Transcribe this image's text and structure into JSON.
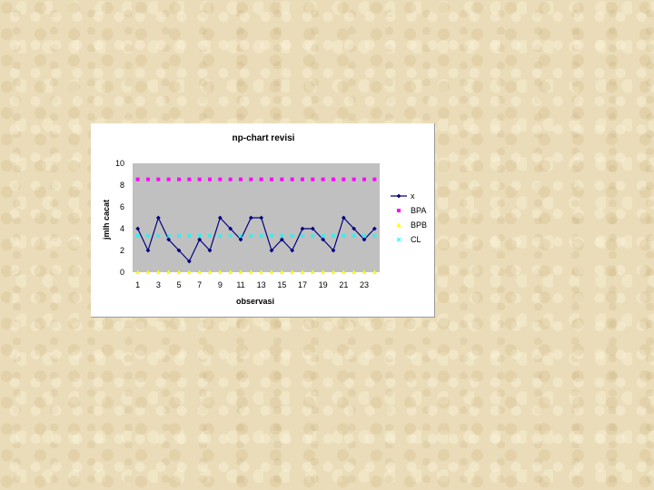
{
  "chart_data": {
    "type": "line",
    "title": "np-chart revisi",
    "xlabel": "observasi",
    "ylabel": "jmlh cacat",
    "x": [
      1,
      2,
      3,
      4,
      5,
      6,
      7,
      8,
      9,
      10,
      11,
      12,
      13,
      14,
      15,
      16,
      17,
      18,
      19,
      20,
      21,
      22,
      23,
      24
    ],
    "x_tick_labels": [
      "1",
      "3",
      "5",
      "7",
      "9",
      "11",
      "13",
      "15",
      "17",
      "19",
      "21",
      "23"
    ],
    "y_tick_labels": [
      "0",
      "2",
      "4",
      "6",
      "8",
      "10"
    ],
    "ylim": [
      0,
      10
    ],
    "grid": false,
    "legend_position": "right",
    "plot_background": "#c0c0c0",
    "series": [
      {
        "name": "x",
        "color": "#000080",
        "marker": "diamond",
        "values": [
          4,
          2,
          5,
          3,
          2,
          1,
          3,
          2,
          5,
          4,
          3,
          5,
          5,
          2,
          3,
          2,
          4,
          4,
          3,
          2,
          5,
          4,
          3,
          4
        ]
      },
      {
        "name": "BPA",
        "color": "#ff00ff",
        "marker": "square",
        "values": [
          8.53,
          8.53,
          8.53,
          8.53,
          8.53,
          8.53,
          8.53,
          8.53,
          8.53,
          8.53,
          8.53,
          8.53,
          8.53,
          8.53,
          8.53,
          8.53,
          8.53,
          8.53,
          8.53,
          8.53,
          8.53,
          8.53,
          8.53,
          8.53
        ]
      },
      {
        "name": "BPB",
        "color": "#ffff00",
        "marker": "triangle",
        "values": [
          0,
          0,
          0,
          0,
          0,
          0,
          0,
          0,
          0,
          0,
          0,
          0,
          0,
          0,
          0,
          0,
          0,
          0,
          0,
          0,
          0,
          0,
          0,
          0
        ]
      },
      {
        "name": "CL",
        "color": "#00ffff",
        "marker": "x",
        "values": [
          3.33,
          3.33,
          3.33,
          3.33,
          3.33,
          3.33,
          3.33,
          3.33,
          3.33,
          3.33,
          3.33,
          3.33,
          3.33,
          3.33,
          3.33,
          3.33,
          3.33,
          3.33,
          3.33,
          3.33,
          3.33,
          3.33,
          3.33,
          3.33
        ]
      }
    ]
  }
}
